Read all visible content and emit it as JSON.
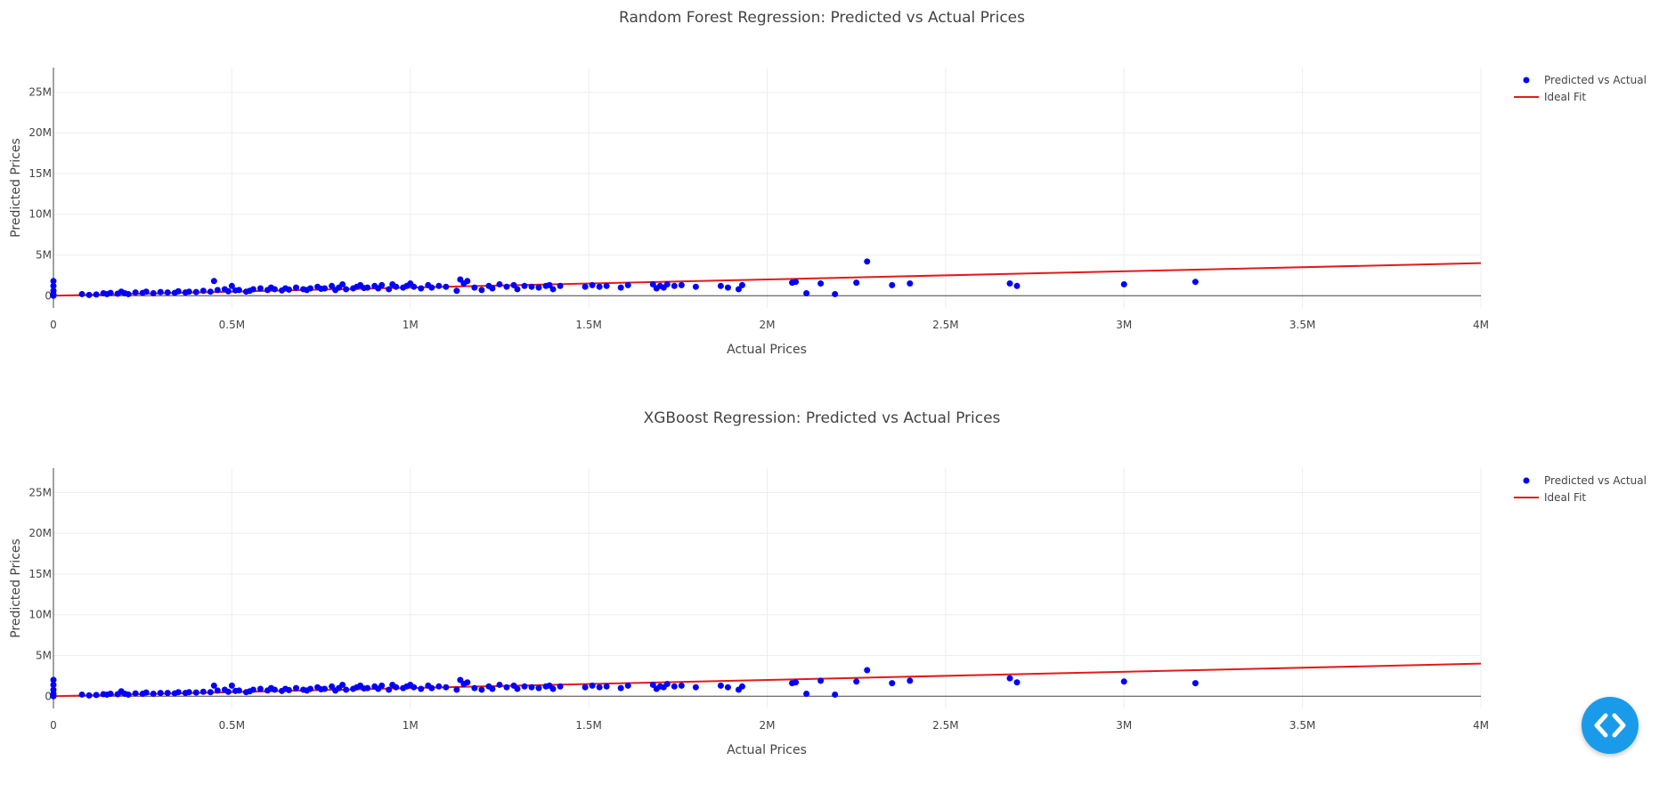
{
  "chart_data": [
    {
      "type": "scatter",
      "title": "Random Forest Regression: Predicted vs Actual Prices",
      "xlabel": "Actual Prices",
      "ylabel": "Predicted Prices",
      "xlim": [
        0,
        4000000
      ],
      "ylim": [
        -1500000,
        28000000
      ],
      "x_ticks": [
        0,
        500000,
        1000000,
        1500000,
        2000000,
        2500000,
        3000000,
        3500000,
        4000000
      ],
      "x_tick_labels": [
        "0",
        "0.5M",
        "1M",
        "1.5M",
        "2M",
        "2.5M",
        "3M",
        "3.5M",
        "4M"
      ],
      "y_ticks": [
        0,
        5000000,
        10000000,
        15000000,
        20000000,
        25000000
      ],
      "y_tick_labels": [
        "0",
        "5M",
        "10M",
        "15M",
        "20M",
        "25M"
      ],
      "grid": true,
      "legend": "top-right",
      "series": [
        {
          "name": "Predicted vs Actual",
          "mode": "markers",
          "color": "#0000ff",
          "x": [
            0,
            0,
            0,
            0,
            0,
            80000,
            100000,
            120000,
            140000,
            150000,
            160000,
            180000,
            190000,
            200000,
            210000,
            230000,
            250000,
            260000,
            280000,
            300000,
            320000,
            340000,
            350000,
            370000,
            380000,
            400000,
            420000,
            440000,
            450000,
            460000,
            480000,
            490000,
            500000,
            510000,
            520000,
            540000,
            550000,
            560000,
            580000,
            600000,
            610000,
            620000,
            640000,
            650000,
            660000,
            680000,
            700000,
            710000,
            720000,
            740000,
            750000,
            760000,
            780000,
            790000,
            800000,
            810000,
            820000,
            840000,
            850000,
            860000,
            870000,
            880000,
            900000,
            910000,
            920000,
            940000,
            950000,
            960000,
            980000,
            990000,
            1000000,
            1010000,
            1030000,
            1050000,
            1060000,
            1080000,
            1100000,
            1130000,
            1140000,
            1150000,
            1160000,
            1180000,
            1200000,
            1220000,
            1230000,
            1250000,
            1270000,
            1290000,
            1300000,
            1320000,
            1340000,
            1360000,
            1380000,
            1390000,
            1400000,
            1420000,
            1490000,
            1510000,
            1530000,
            1550000,
            1590000,
            1610000,
            1680000,
            1690000,
            1700000,
            1710000,
            1720000,
            1740000,
            1760000,
            1800000,
            1870000,
            1890000,
            1920000,
            1930000,
            2070000,
            2080000,
            2110000,
            2150000,
            2190000,
            2250000,
            2280000,
            2350000,
            2400000,
            2680000,
            2700000,
            3000000,
            3200000
          ],
          "y": [
            1800000,
            1200000,
            600000,
            200000,
            0,
            200000,
            100000,
            150000,
            300000,
            200000,
            350000,
            250000,
            500000,
            300000,
            200000,
            400000,
            350000,
            500000,
            300000,
            450000,
            400000,
            350000,
            550000,
            400000,
            500000,
            450000,
            600000,
            500000,
            1800000,
            700000,
            800000,
            550000,
            1200000,
            650000,
            700000,
            500000,
            600000,
            800000,
            900000,
            700000,
            1000000,
            800000,
            650000,
            900000,
            750000,
            1000000,
            800000,
            700000,
            900000,
            1100000,
            850000,
            900000,
            1200000,
            700000,
            1000000,
            1400000,
            800000,
            900000,
            1100000,
            1300000,
            950000,
            1000000,
            1200000,
            900000,
            1300000,
            800000,
            1400000,
            1100000,
            1000000,
            1200000,
            1500000,
            1100000,
            900000,
            1300000,
            1000000,
            1200000,
            1100000,
            600000,
            2000000,
            1500000,
            1800000,
            1000000,
            700000,
            1200000,
            900000,
            1400000,
            1100000,
            1300000,
            800000,
            1200000,
            1100000,
            1000000,
            1200000,
            1300000,
            800000,
            1200000,
            1100000,
            1300000,
            1100000,
            1200000,
            1000000,
            1300000,
            1400000,
            900000,
            1200000,
            1000000,
            1400000,
            1200000,
            1300000,
            1100000,
            1200000,
            1000000,
            800000,
            1300000,
            1600000,
            1700000,
            300000,
            1500000,
            200000,
            1600000,
            4200000,
            1300000,
            1500000,
            1500000,
            1200000,
            1400000,
            1700000
          ]
        },
        {
          "name": "Ideal Fit",
          "mode": "lines",
          "color": "#e31a1c",
          "x": [
            0,
            4000000
          ],
          "y": [
            0,
            4000000
          ]
        }
      ]
    },
    {
      "type": "scatter",
      "title": "XGBoost Regression: Predicted vs Actual Prices",
      "xlabel": "Actual Prices",
      "ylabel": "Predicted Prices",
      "xlim": [
        0,
        4000000
      ],
      "ylim": [
        -1500000,
        28000000
      ],
      "x_ticks": [
        0,
        500000,
        1000000,
        1500000,
        2000000,
        2500000,
        3000000,
        3500000,
        4000000
      ],
      "x_tick_labels": [
        "0",
        "0.5M",
        "1M",
        "1.5M",
        "2M",
        "2.5M",
        "3M",
        "3.5M",
        "4M"
      ],
      "y_ticks": [
        0,
        5000000,
        10000000,
        15000000,
        20000000,
        25000000
      ],
      "y_tick_labels": [
        "0",
        "5M",
        "10M",
        "15M",
        "20M",
        "25M"
      ],
      "grid": true,
      "legend": "top-right",
      "series": [
        {
          "name": "Predicted vs Actual",
          "mode": "markers",
          "color": "#0000ff",
          "x": [
            0,
            0,
            0,
            0,
            0,
            80000,
            100000,
            120000,
            140000,
            150000,
            160000,
            180000,
            190000,
            200000,
            210000,
            230000,
            250000,
            260000,
            280000,
            300000,
            320000,
            340000,
            350000,
            370000,
            380000,
            400000,
            420000,
            440000,
            450000,
            460000,
            480000,
            490000,
            500000,
            510000,
            520000,
            540000,
            550000,
            560000,
            580000,
            600000,
            610000,
            620000,
            640000,
            650000,
            660000,
            680000,
            700000,
            710000,
            720000,
            740000,
            750000,
            760000,
            780000,
            790000,
            800000,
            810000,
            820000,
            840000,
            850000,
            860000,
            870000,
            880000,
            900000,
            910000,
            920000,
            940000,
            950000,
            960000,
            980000,
            990000,
            1000000,
            1010000,
            1030000,
            1050000,
            1060000,
            1080000,
            1100000,
            1130000,
            1140000,
            1150000,
            1160000,
            1180000,
            1200000,
            1220000,
            1230000,
            1250000,
            1270000,
            1290000,
            1300000,
            1320000,
            1340000,
            1360000,
            1380000,
            1390000,
            1400000,
            1420000,
            1490000,
            1510000,
            1530000,
            1550000,
            1590000,
            1610000,
            1680000,
            1690000,
            1700000,
            1710000,
            1720000,
            1740000,
            1760000,
            1800000,
            1870000,
            1890000,
            1920000,
            1930000,
            2070000,
            2080000,
            2110000,
            2150000,
            2190000,
            2250000,
            2280000,
            2350000,
            2400000,
            2680000,
            2700000,
            3000000,
            3200000
          ],
          "y": [
            2000000,
            1400000,
            800000,
            300000,
            0,
            200000,
            100000,
            150000,
            250000,
            200000,
            300000,
            250000,
            600000,
            300000,
            200000,
            350000,
            300000,
            450000,
            300000,
            400000,
            400000,
            350000,
            500000,
            400000,
            500000,
            450000,
            550000,
            500000,
            1300000,
            700000,
            800000,
            550000,
            1300000,
            650000,
            700000,
            500000,
            600000,
            800000,
            900000,
            700000,
            1000000,
            800000,
            650000,
            900000,
            750000,
            1000000,
            800000,
            700000,
            900000,
            1100000,
            850000,
            900000,
            1200000,
            700000,
            1000000,
            1400000,
            800000,
            900000,
            1100000,
            1300000,
            950000,
            1000000,
            1200000,
            900000,
            1300000,
            800000,
            1400000,
            1100000,
            1000000,
            1200000,
            1400000,
            1100000,
            900000,
            1300000,
            1000000,
            1200000,
            1100000,
            800000,
            2000000,
            1500000,
            1700000,
            1000000,
            800000,
            1200000,
            900000,
            1400000,
            1100000,
            1300000,
            900000,
            1200000,
            1100000,
            1000000,
            1200000,
            1300000,
            900000,
            1200000,
            1100000,
            1300000,
            1100000,
            1200000,
            1000000,
            1300000,
            1400000,
            900000,
            1200000,
            1100000,
            1500000,
            1200000,
            1300000,
            1100000,
            1300000,
            1100000,
            800000,
            1200000,
            1600000,
            1700000,
            300000,
            1900000,
            200000,
            1800000,
            3200000,
            1600000,
            1900000,
            2200000,
            1700000,
            1800000,
            1600000
          ]
        },
        {
          "name": "Ideal Fit",
          "mode": "lines",
          "color": "#e31a1c",
          "x": [
            0,
            4000000
          ],
          "y": [
            0,
            4000000
          ]
        }
      ]
    }
  ],
  "fab": {
    "icon": "code-icon",
    "color": "#1a9bea"
  }
}
